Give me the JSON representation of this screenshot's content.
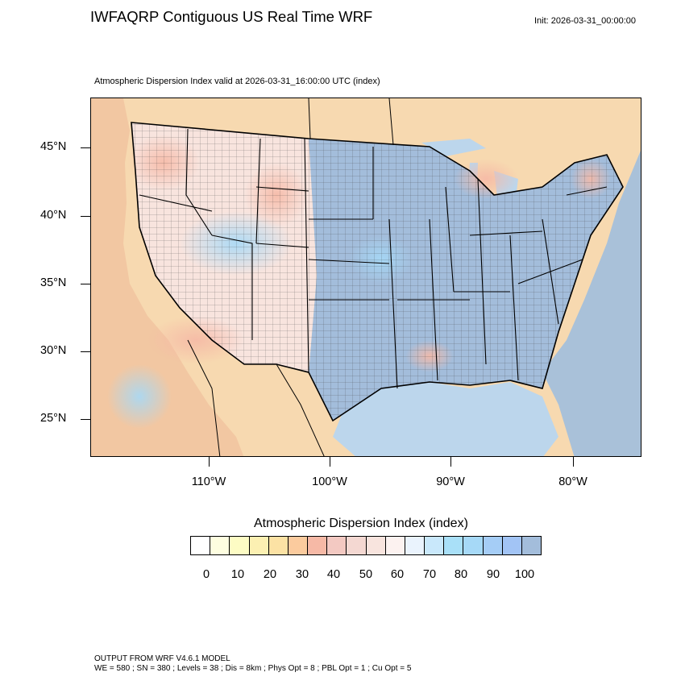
{
  "header": {
    "title": "IWFAQRP Contiguous US Real Time WRF",
    "init": "Init: 2026-03-31_00:00:00",
    "subtitle": "Atmospheric Dispersion Index valid at 2026-03-31_16:00:00 UTC   (index)"
  },
  "map": {
    "region": "Contiguous United States",
    "lat_labels": [
      "45°N",
      "40°N",
      "35°N",
      "30°N",
      "25°N"
    ],
    "lon_labels": [
      "110°W",
      "100°W",
      "90°W",
      "80°W"
    ],
    "colors": {
      "ocean": "#a9c1d9",
      "land_low": "#f7d9b0",
      "land_mid": "#f3b7a0",
      "land_high": "#a8c5de",
      "boundary": "#000000"
    }
  },
  "legend": {
    "title": "Atmospheric Dispersion Index  (index)",
    "tick_labels": [
      "0",
      "10",
      "20",
      "30",
      "40",
      "50",
      "60",
      "70",
      "80",
      "90",
      "100"
    ],
    "colors": [
      "#ffffff",
      "#fefee0",
      "#fdfcc4",
      "#fcf0b2",
      "#fce2a4",
      "#fbcb9e",
      "#f6b9a6",
      "#f3c9c2",
      "#f4d8d2",
      "#f8e4de",
      "#fcf2f0",
      "#eaf3fd",
      "#c9e8fb",
      "#a9e0f8",
      "#a6d9f7",
      "#a5cdf6",
      "#a2c4f5",
      "#a3bddb"
    ]
  },
  "footer": {
    "line1": "OUTPUT FROM WRF V4.6.1 MODEL",
    "line2": "WE = 580 ; SN = 380 ; Levels = 38 ; Dis = 8km ; Phys Opt = 8 ; PBL Opt = 1 ; Cu Opt = 5"
  }
}
